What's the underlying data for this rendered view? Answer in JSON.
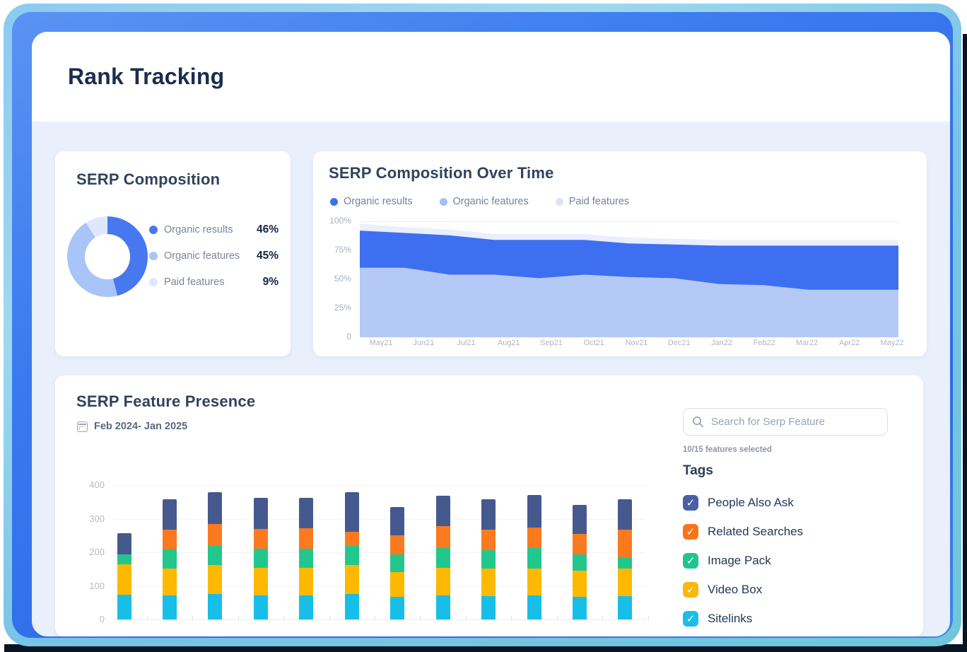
{
  "page": {
    "title": "Rank Tracking"
  },
  "serp_composition": {
    "title": "SERP Composition",
    "legend": [
      {
        "label": "Organic results",
        "value": "46%",
        "color": "#4878f0"
      },
      {
        "label": "Organic features",
        "value": "45%",
        "color": "#a9c5f8"
      },
      {
        "label": "Paid features",
        "value": "9%",
        "color": "#dee8fc"
      }
    ],
    "chart_data": {
      "type": "pie",
      "donut": true,
      "labels": [
        "Organic results",
        "Organic features",
        "Paid features"
      ],
      "values": [
        46,
        45,
        9
      ],
      "colors": [
        "#4878f0",
        "#a9c5f8",
        "#dee8fc"
      ]
    }
  },
  "serp_over_time": {
    "title": "SERP Composition Over Time",
    "legend": [
      {
        "label": "Organic results",
        "color": "#3d6ff0"
      },
      {
        "label": "Organic features",
        "color": "#a3bff7"
      },
      {
        "label": "Paid features",
        "color": "#d9e4fa"
      }
    ],
    "chart_data": {
      "type": "area",
      "stacked": true,
      "unit": "%",
      "x": [
        "May21",
        "Jun21",
        "Jul21",
        "Aug21",
        "Sep21",
        "Oct21",
        "Nov21",
        "Dec21",
        "Jan22",
        "Feb22",
        "Mar22",
        "Apr22",
        "May22"
      ],
      "yticks": [
        "100%",
        "75%",
        "50%",
        "25%",
        "0"
      ],
      "ylim": [
        0,
        100
      ],
      "grid": true,
      "legend_position": "top",
      "series": [
        {
          "name": "Organic features",
          "color": "#b5c9f7",
          "values": [
            60,
            60,
            54,
            54,
            51,
            54,
            52,
            51,
            46,
            45,
            41,
            41,
            41
          ]
        },
        {
          "name": "Organic results",
          "color": "#3d6ff0",
          "values": [
            32,
            30,
            34,
            30,
            33,
            30,
            29,
            29,
            33,
            34,
            38,
            38,
            38
          ]
        },
        {
          "name": "Paid features",
          "color": "#e9effc",
          "values": [
            6,
            5,
            5,
            5,
            5,
            5,
            5,
            5,
            5,
            5,
            5,
            5,
            5
          ]
        }
      ]
    }
  },
  "feature_presence": {
    "title": "SERP Feature Presence",
    "date_range": "Feb 2024- Jan 2025",
    "search_placeholder": "Search for Serp Feature",
    "selected_text": "10/15 features selected",
    "tags_title": "Tags",
    "tags": [
      {
        "label": "People Also Ask",
        "color": "#4c5ea4",
        "checked": true
      },
      {
        "label": "Related Searches",
        "color": "#f9731a",
        "checked": true
      },
      {
        "label": "Image Pack",
        "color": "#21c68c",
        "checked": true
      },
      {
        "label": "Video Box",
        "color": "#fdb70d",
        "checked": true
      },
      {
        "label": "Sitelinks",
        "color": "#1abee8",
        "checked": true
      }
    ],
    "chart_data": {
      "type": "bar",
      "stacked": true,
      "bars": 12,
      "yticks": [
        400,
        300,
        200,
        100,
        0
      ],
      "ylim": [
        0,
        400
      ],
      "grid": true,
      "series": [
        {
          "name": "Sitelinks",
          "color": "#17bfe8",
          "values": [
            74,
            72,
            76,
            72,
            72,
            75,
            67,
            72,
            70,
            72,
            67,
            69
          ]
        },
        {
          "name": "Video Box",
          "color": "#fdb900",
          "values": [
            90,
            80,
            87,
            82,
            82,
            87,
            75,
            81,
            81,
            79,
            78,
            82
          ]
        },
        {
          "name": "Image Pack",
          "color": "#22c78d",
          "values": [
            29,
            56,
            57,
            56,
            56,
            58,
            51,
            59,
            55,
            61,
            48,
            34
          ]
        },
        {
          "name": "Related Searches",
          "color": "#fb7a20",
          "values": [
            0,
            60,
            65,
            60,
            61,
            42,
            57,
            65,
            61,
            62,
            62,
            83
          ]
        },
        {
          "name": "People Also Ask",
          "color": "#46598f",
          "values": [
            64,
            90,
            93,
            92,
            91,
            118,
            85,
            91,
            92,
            96,
            86,
            89
          ]
        }
      ]
    }
  }
}
